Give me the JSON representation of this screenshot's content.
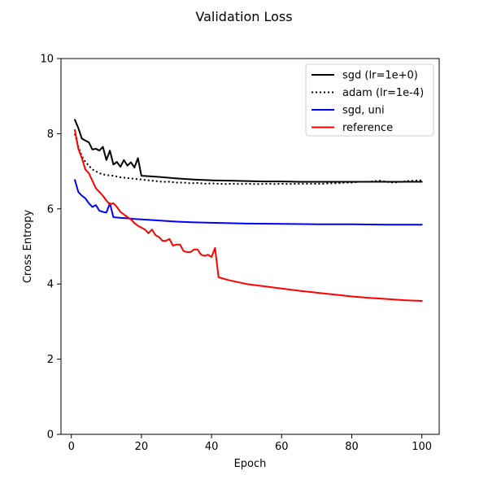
{
  "chart_data": {
    "type": "line",
    "title": "Validation Loss",
    "xlabel": "Epoch",
    "ylabel": "Cross Entropy",
    "xlim": [
      -2.95,
      104.95
    ],
    "ylim": [
      0,
      10
    ],
    "xticks": [
      0,
      20,
      40,
      60,
      80,
      100
    ],
    "yticks": [
      0,
      2,
      4,
      6,
      8,
      10
    ],
    "grid": false,
    "legend_position": "upper right",
    "series": [
      {
        "name": "sgd (lr=1e+0)",
        "color": "#000000",
        "style": "solid",
        "x": [
          1,
          2,
          3,
          4,
          5,
          6,
          7,
          8,
          9,
          10,
          11,
          12,
          13,
          14,
          15,
          16,
          17,
          18,
          19,
          20,
          22,
          25,
          30,
          35,
          40,
          45,
          50,
          55,
          60,
          65,
          70,
          75,
          80,
          85,
          90,
          95,
          100
        ],
        "values": [
          8.37,
          8.15,
          7.87,
          7.82,
          7.77,
          7.58,
          7.6,
          7.55,
          7.65,
          7.3,
          7.55,
          7.18,
          7.25,
          7.12,
          7.3,
          7.15,
          7.24,
          7.1,
          7.35,
          6.88,
          6.87,
          6.85,
          6.81,
          6.78,
          6.76,
          6.75,
          6.74,
          6.73,
          6.73,
          6.72,
          6.72,
          6.72,
          6.72,
          6.72,
          6.72,
          6.72,
          6.72
        ]
      },
      {
        "name": "adam (lr=1e-4)",
        "color": "#000000",
        "style": "dotted",
        "x": [
          1,
          2,
          3,
          4,
          5,
          6,
          7,
          8,
          9,
          10,
          12,
          14,
          16,
          18,
          20,
          22,
          24,
          26,
          28,
          30,
          32,
          34,
          36,
          38,
          40,
          42,
          44,
          46,
          48,
          50,
          52,
          54,
          56,
          58,
          60,
          62,
          64,
          66,
          68,
          70,
          72,
          74,
          76,
          78,
          80,
          82,
          84,
          86,
          88,
          90,
          92,
          94,
          96,
          98,
          100
        ],
        "values": [
          8.0,
          7.65,
          7.4,
          7.25,
          7.15,
          7.05,
          7.0,
          6.95,
          6.92,
          6.9,
          6.88,
          6.84,
          6.82,
          6.8,
          6.78,
          6.76,
          6.74,
          6.72,
          6.72,
          6.7,
          6.7,
          6.68,
          6.69,
          6.67,
          6.68,
          6.67,
          6.66,
          6.67,
          6.66,
          6.67,
          6.66,
          6.66,
          6.67,
          6.66,
          6.67,
          6.66,
          6.67,
          6.67,
          6.67,
          6.67,
          6.67,
          6.68,
          6.68,
          6.7,
          6.7,
          6.72,
          6.72,
          6.73,
          6.75,
          6.72,
          6.7,
          6.72,
          6.74,
          6.75,
          6.76
        ]
      },
      {
        "name": "sgd, uni",
        "color": "#0000ff",
        "style": "solid",
        "x": [
          1,
          2,
          3,
          4,
          5,
          6,
          7,
          8,
          9,
          10,
          11,
          12,
          14,
          16,
          18,
          20,
          25,
          30,
          35,
          40,
          50,
          60,
          70,
          80,
          90,
          100
        ],
        "values": [
          6.77,
          6.45,
          6.35,
          6.28,
          6.15,
          6.05,
          6.1,
          5.95,
          5.92,
          5.9,
          6.15,
          5.78,
          5.76,
          5.75,
          5.73,
          5.72,
          5.69,
          5.66,
          5.64,
          5.63,
          5.61,
          5.6,
          5.59,
          5.59,
          5.58,
          5.58
        ]
      },
      {
        "name": "reference",
        "color": "#ff0000",
        "style": "solid",
        "x": [
          1,
          2,
          3,
          4,
          5,
          6,
          7,
          8,
          9,
          10,
          11,
          12,
          13,
          14,
          15,
          16,
          17,
          18,
          19,
          20,
          21,
          22,
          23,
          24,
          25,
          26,
          27,
          28,
          29,
          30,
          31,
          32,
          33,
          34,
          35,
          36,
          37,
          38,
          39,
          40,
          41,
          42,
          45,
          50,
          55,
          60,
          65,
          70,
          75,
          80,
          85,
          90,
          95,
          100
        ],
        "values": [
          8.1,
          7.6,
          7.35,
          7.05,
          6.95,
          6.75,
          6.55,
          6.45,
          6.35,
          6.22,
          6.12,
          6.15,
          6.05,
          5.92,
          5.85,
          5.78,
          5.72,
          5.62,
          5.55,
          5.5,
          5.45,
          5.35,
          5.45,
          5.3,
          5.25,
          5.15,
          5.15,
          5.2,
          5.02,
          5.05,
          5.05,
          4.88,
          4.85,
          4.85,
          4.92,
          4.92,
          4.78,
          4.75,
          4.78,
          4.72,
          4.96,
          4.18,
          4.1,
          4.0,
          3.94,
          3.88,
          3.82,
          3.77,
          3.72,
          3.67,
          3.63,
          3.6,
          3.57,
          3.55
        ]
      }
    ]
  }
}
